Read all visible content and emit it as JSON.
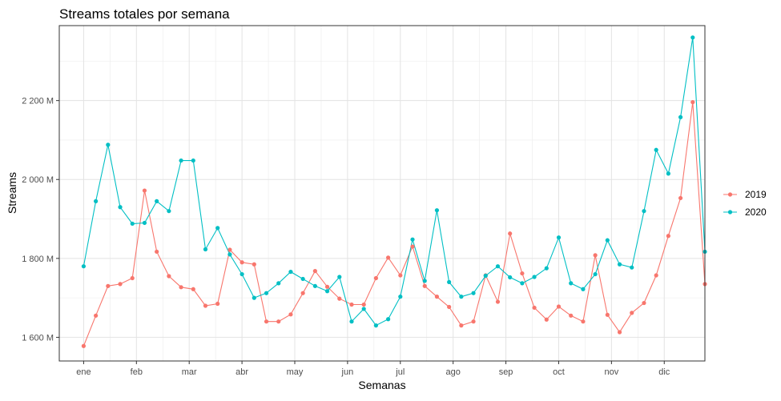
{
  "chart_data": {
    "type": "line",
    "title": "Streams totales por semana",
    "xlabel": "Semanas",
    "ylabel": "Streams",
    "x_ticks": [
      "ene",
      "feb",
      "mar",
      "abr",
      "may",
      "jun",
      "jul",
      "ago",
      "sep",
      "oct",
      "nov",
      "dic"
    ],
    "y_ticks": [
      "1 600 M",
      "1 800 M",
      "2 000 M",
      "2 200 M"
    ],
    "y_tick_values": [
      1600,
      1800,
      2000,
      2200
    ],
    "ylim": [
      1540,
      2390
    ],
    "week_range": [
      -1,
      52
    ],
    "grid": true,
    "legend_position": "right",
    "series": [
      {
        "name": "2019",
        "color": "#F8766D",
        "week_start": 1,
        "values": [
          1578,
          1655,
          1730,
          1735,
          1750,
          1972,
          1817,
          1755,
          1727,
          1722,
          1680,
          1685,
          1822,
          1790,
          1785,
          1640,
          1640,
          1658,
          1712,
          1768,
          1728,
          1698,
          1683,
          1683,
          1750,
          1802,
          1757,
          1830,
          1730,
          1703,
          1677,
          1630,
          1640,
          1757,
          1690,
          1863,
          1762,
          1675,
          1645,
          1678,
          1655,
          1640,
          1808,
          1657,
          1613,
          1662,
          1687,
          1757,
          1857,
          1953,
          2196,
          1735
        ]
      },
      {
        "name": "2020",
        "color": "#00BFC4",
        "week_start": 1,
        "values": [
          1780,
          1945,
          2088,
          1930,
          1888,
          1890,
          1945,
          1920,
          2048,
          2048,
          1823,
          1877,
          1810,
          1760,
          1700,
          1712,
          1737,
          1766,
          1748,
          1730,
          1717,
          1753,
          1640,
          1672,
          1630,
          1646,
          1703,
          1848,
          1743,
          1922,
          1740,
          1703,
          1712,
          1756,
          1780,
          1752,
          1737,
          1753,
          1775,
          1853,
          1737,
          1722,
          1760,
          1846,
          1785,
          1777,
          1920,
          2075,
          2015,
          2158,
          2360,
          1817
        ]
      }
    ]
  }
}
